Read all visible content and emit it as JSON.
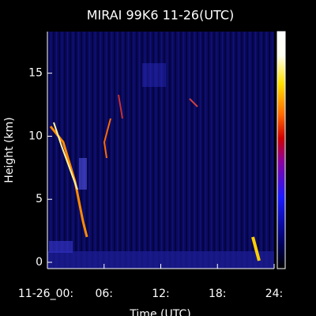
{
  "chart_data": {
    "type": "heatmap",
    "title": "MIRAI 99K6 11-26(UTC)",
    "xlabel": "Time (UTC)",
    "ylabel": "Height (km)",
    "xlim": [
      0,
      24
    ],
    "xticks": [
      {
        "value": 0,
        "label": "11-26_00:"
      },
      {
        "value": 6,
        "label": "06:"
      },
      {
        "value": 12,
        "label": "12:"
      },
      {
        "value": 18,
        "label": "18:"
      },
      {
        "value": 24,
        "label": "24:"
      }
    ],
    "ylim": [
      -0.5,
      18.3
    ],
    "yticks": [
      0,
      5,
      10,
      15
    ],
    "colorbar": true
  }
}
